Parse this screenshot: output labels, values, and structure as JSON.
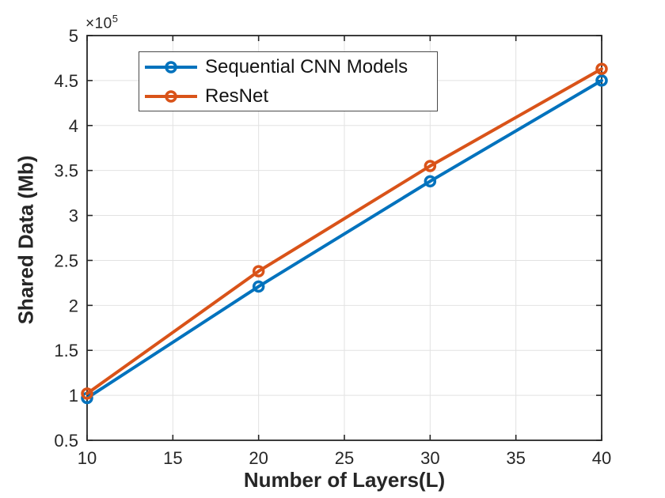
{
  "figure": {
    "background": "#FFFFFF",
    "axis_color": "#262626",
    "grid_color": "#E2E2E2"
  },
  "chart_data": {
    "type": "line",
    "title": "",
    "xlabel": "Number of Layers(L)",
    "ylabel": "Shared Data (Mb)",
    "y_axis_exponent": {
      "base": "×10",
      "power": "5"
    },
    "x": [
      10,
      20,
      30,
      40
    ],
    "series": [
      {
        "name": "Sequential CNN Models",
        "color": "#0072BD",
        "values": [
          97000,
          221000,
          338000,
          450000
        ]
      },
      {
        "name": "ResNet",
        "color": "#D95319",
        "values": [
          102000,
          238000,
          355000,
          463000
        ]
      }
    ],
    "xlim": [
      10,
      40
    ],
    "ylim": [
      50000,
      500000
    ],
    "xticks": [
      10,
      15,
      20,
      25,
      30,
      35,
      40
    ],
    "xtick_labels": [
      "10",
      "15",
      "20",
      "25",
      "30",
      "35",
      "40"
    ],
    "yticks": [
      50000,
      100000,
      150000,
      200000,
      250000,
      300000,
      350000,
      400000,
      450000,
      500000
    ],
    "ytick_labels": [
      "0.5",
      "1",
      "1.5",
      "2",
      "2.5",
      "3",
      "3.5",
      "4",
      "4.5",
      "5"
    ],
    "grid": true,
    "marker": "o",
    "line_width": 4,
    "legend": {
      "position": "top-left-inside",
      "entries": [
        "Sequential CNN Models",
        "ResNet"
      ]
    }
  }
}
